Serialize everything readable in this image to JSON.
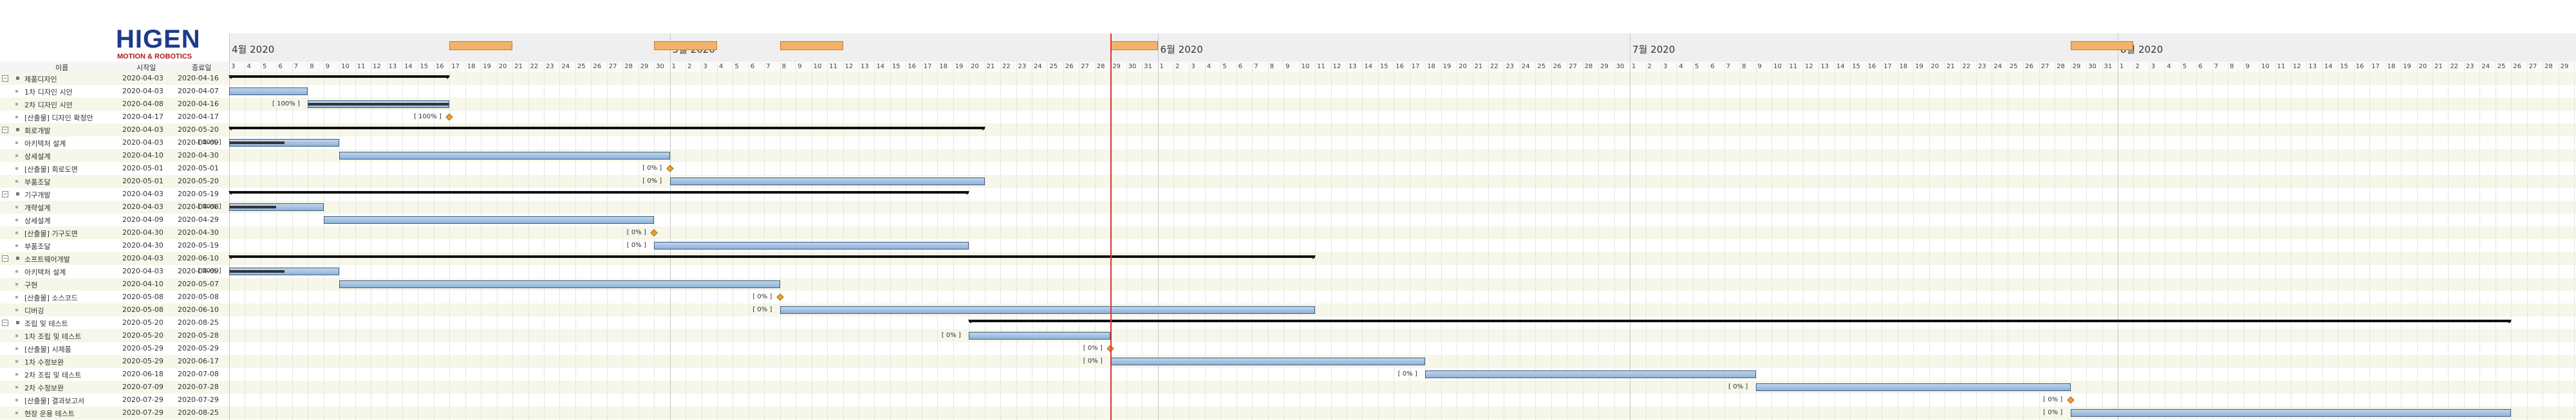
{
  "header": {
    "logo_main": "HIGEN",
    "logo_sub": "MOTION & ROBOTICS",
    "col_name": "이름",
    "col_start": "시작일",
    "col_end": "종료일"
  },
  "months": [
    {
      "label": "4월 2020",
      "day": 0
    },
    {
      "label": "5월 2020",
      "day": 28
    },
    {
      "label": "6월 2020",
      "day": 59
    },
    {
      "label": "7월 2020",
      "day": 89
    },
    {
      "label": "8월 2020",
      "day": 120
    }
  ],
  "tasks": [
    {
      "name": "제품디자인",
      "start": "2020-04-03",
      "end": "2020-04-16",
      "level": 0,
      "summary": true
    },
    {
      "name": "1차 디자인 시안",
      "start": "2020-04-03",
      "end": "2020-04-07",
      "level": 1
    },
    {
      "name": "2차 디자인 시안",
      "start": "2020-04-08",
      "end": "2020-04-16",
      "level": 1,
      "pct": "[ 100% ]"
    },
    {
      "name": "[산출물] 디자인 확정안",
      "start": "2020-04-17",
      "end": "2020-04-17",
      "level": 1,
      "pct": "[ 100% ]",
      "milestone": true
    },
    {
      "name": "회로개발",
      "start": "2020-04-03",
      "end": "2020-05-20",
      "level": 0,
      "summary": true
    },
    {
      "name": "아키텍처 설계",
      "start": "2020-04-03",
      "end": "2020-04-09",
      "level": 1,
      "pct": "[ 50% ]"
    },
    {
      "name": "상세설계",
      "start": "2020-04-10",
      "end": "2020-04-30",
      "level": 1
    },
    {
      "name": "[산출물] 회로도면",
      "start": "2020-05-01",
      "end": "2020-05-01",
      "level": 1,
      "pct": "[ 0% ]",
      "milestone": true
    },
    {
      "name": "부품조달",
      "start": "2020-05-01",
      "end": "2020-05-20",
      "level": 1,
      "pct": "[ 0% ]"
    },
    {
      "name": "기구개발",
      "start": "2020-04-03",
      "end": "2020-05-19",
      "level": 0,
      "summary": true
    },
    {
      "name": "개략설계",
      "start": "2020-04-03",
      "end": "2020-04-08",
      "level": 1,
      "pct": "[ 50% ]"
    },
    {
      "name": "상세설계",
      "start": "2020-04-09",
      "end": "2020-04-29",
      "level": 1
    },
    {
      "name": "[산출물] 기구도면",
      "start": "2020-04-30",
      "end": "2020-04-30",
      "level": 1,
      "pct": "[ 0% ]",
      "milestone": true
    },
    {
      "name": "부품조달",
      "start": "2020-04-30",
      "end": "2020-05-19",
      "level": 1,
      "pct": "[ 0% ]"
    },
    {
      "name": "소프트웨어개발",
      "start": "2020-04-03",
      "end": "2020-06-10",
      "level": 0,
      "summary": true
    },
    {
      "name": "아키텍처 설계",
      "start": "2020-04-03",
      "end": "2020-04-09",
      "level": 1,
      "pct": "[ 50% ]"
    },
    {
      "name": "구현",
      "start": "2020-04-10",
      "end": "2020-05-07",
      "level": 1
    },
    {
      "name": "[산출물] 소스코드",
      "start": "2020-05-08",
      "end": "2020-05-08",
      "level": 1,
      "pct": "[ 0% ]",
      "milestone": true
    },
    {
      "name": "디버깅",
      "start": "2020-05-08",
      "end": "2020-06-10",
      "level": 1,
      "pct": "[ 0% ]"
    },
    {
      "name": "조립 및 테스트",
      "start": "2020-05-20",
      "end": "2020-08-25",
      "level": 0,
      "summary": true
    },
    {
      "name": "1차 조립 및 테스트",
      "start": "2020-05-20",
      "end": "2020-05-28",
      "level": 1,
      "pct": "[ 0% ]"
    },
    {
      "name": "[산출물] 시제품",
      "start": "2020-05-29",
      "end": "2020-05-29",
      "level": 1,
      "pct": "[ 0% ]",
      "milestone": true
    },
    {
      "name": "1차 수정보완",
      "start": "2020-05-29",
      "end": "2020-06-17",
      "level": 1,
      "pct": "[ 0% ]"
    },
    {
      "name": "2차 조립 및 테스트",
      "start": "2020-06-18",
      "end": "2020-07-08",
      "level": 1,
      "pct": "[ 0% ]"
    },
    {
      "name": "2차 수정보완",
      "start": "2020-07-09",
      "end": "2020-07-28",
      "level": 1,
      "pct": "[ 0% ]"
    },
    {
      "name": "[산출물] 결과보고서",
      "start": "2020-07-29",
      "end": "2020-07-29",
      "level": 1,
      "pct": "[ 0% ]",
      "milestone": true
    },
    {
      "name": "현장 운용 테스트",
      "start": "2020-07-29",
      "end": "2020-08-25",
      "level": 1,
      "pct": "[ 0% ]"
    }
  ],
  "markers": [
    {
      "start": "2020-04-17",
      "end": "2020-04-20"
    },
    {
      "start": "2020-04-30",
      "end": "2020-05-03"
    },
    {
      "start": "2020-05-08",
      "end": "2020-05-11"
    },
    {
      "start": "2020-05-29",
      "end": "2020-05-31"
    },
    {
      "start": "2020-07-29",
      "end": "2020-08-01"
    }
  ],
  "today": "2020-05-29",
  "colors": {
    "bar": "#8fb2d8",
    "today": "#e2322f",
    "marker": "#f2b26a",
    "summary": "#111111"
  }
}
